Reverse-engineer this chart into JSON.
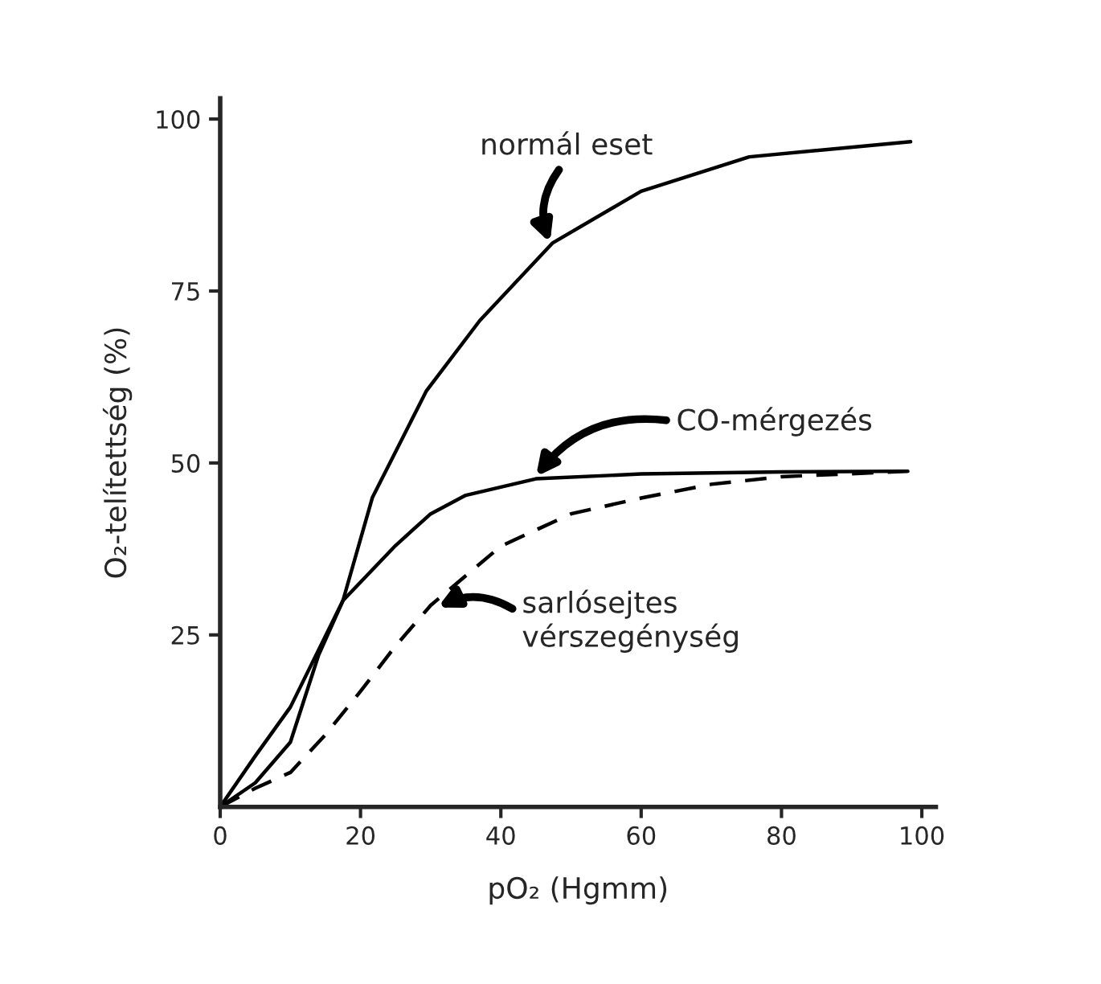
{
  "chart_data": {
    "type": "line",
    "xlabel": "pO₂ (Hgmm)",
    "ylabel": "O₂-telítettség (%)",
    "xlim": [
      0,
      102
    ],
    "ylim": [
      0,
      103
    ],
    "xticks": [
      0,
      20,
      40,
      60,
      80,
      100
    ],
    "yticks": [
      25,
      50,
      75,
      100
    ],
    "grid": false,
    "marker": "none",
    "series": [
      {
        "color": "#000000",
        "line_style": "solid",
        "x": [
          0,
          5,
          10,
          14,
          17.5,
          21.7,
          29.4,
          37,
          47.4,
          60,
          75.4,
          98.4
        ],
        "values": [
          0,
          3.5,
          9.4,
          22,
          30,
          45,
          60.5,
          70.7,
          82,
          89.5,
          94.5,
          96.7
        ]
      },
      {
        "color": "#000000",
        "line_style": "solid",
        "x": [
          0,
          5,
          10,
          17.5,
          25,
          30,
          35,
          45,
          60,
          80,
          98
        ],
        "values": [
          0,
          7.4,
          14.5,
          30,
          38,
          42.6,
          45.3,
          47.7,
          48.4,
          48.7,
          48.8
        ]
      },
      {
        "color": "#000000",
        "line_style": "dashed",
        "x": [
          0,
          5,
          10,
          15,
          20,
          25,
          30,
          40,
          50,
          60,
          70,
          80,
          98
        ],
        "values": [
          0,
          2.7,
          5,
          10.5,
          16.8,
          23.4,
          29.3,
          37.9,
          42.6,
          44.9,
          46.9,
          48,
          48.8
        ]
      }
    ],
    "annotations": [
      {
        "text": "normál eset",
        "x": 47,
        "y": 82
      },
      {
        "text": "CO-mérgezés",
        "x": 45,
        "y": 48
      },
      {
        "text": "sarlósejtes\nvérszegénység",
        "x": 31,
        "y": 29
      }
    ]
  }
}
